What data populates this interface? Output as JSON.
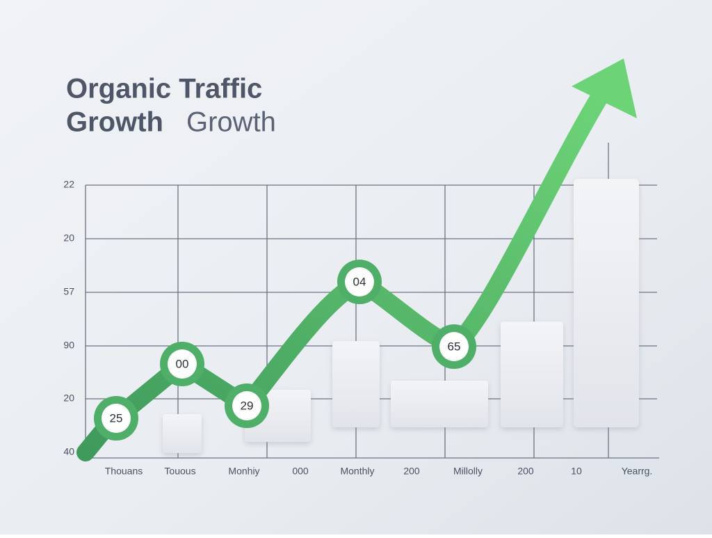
{
  "title": {
    "line1": "Organic Traffic",
    "line2_bold": "Growth",
    "line2_light": "Growth"
  },
  "y_labels": [
    "22",
    "20",
    "57",
    "90",
    "20",
    "40"
  ],
  "x_labels": [
    "Thouans",
    "Touous",
    "Monhiy",
    "000",
    "Monthly",
    "200",
    "Millolly",
    "200",
    "10",
    "Yearrg."
  ],
  "point_labels": [
    "25",
    "00",
    "29",
    "04",
    "65"
  ]
}
